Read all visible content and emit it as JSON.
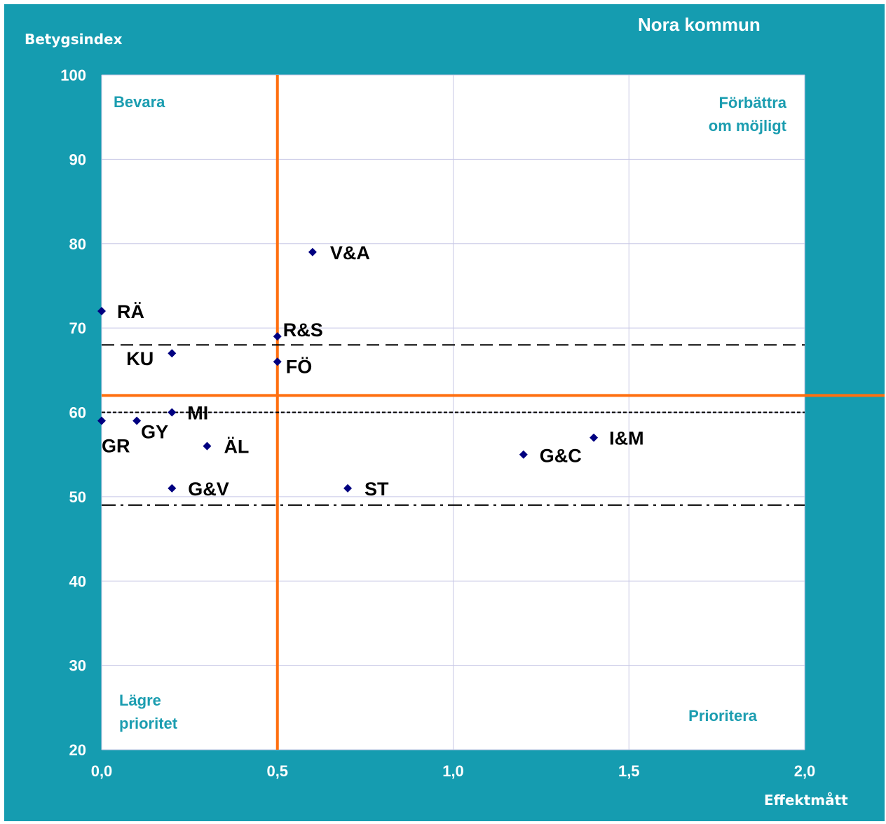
{
  "chart_data": {
    "type": "scatter",
    "title": "Nora kommun",
    "xlabel": "Effektmått",
    "ylabel": "Betygsindex",
    "xlim": [
      0,
      2
    ],
    "ylim": [
      20,
      100
    ],
    "x_ticks": [
      "0,0",
      "0,5",
      "1,0",
      "1,5",
      "2,0"
    ],
    "y_ticks": [
      "20",
      "30",
      "40",
      "50",
      "60",
      "70",
      "80",
      "90",
      "100"
    ],
    "grid": true,
    "marker_color": "#000080",
    "points": [
      {
        "label": "V&A",
        "x": 0.6,
        "y": 79
      },
      {
        "label": "RÄ",
        "x": 0.0,
        "y": 72
      },
      {
        "label": "R&S",
        "x": 0.5,
        "y": 69
      },
      {
        "label": "KU",
        "x": 0.2,
        "y": 67
      },
      {
        "label": "FÖ",
        "x": 0.5,
        "y": 66
      },
      {
        "label": "MI",
        "x": 0.2,
        "y": 60
      },
      {
        "label": "GR",
        "x": 0.0,
        "y": 59
      },
      {
        "label": "GY",
        "x": 0.1,
        "y": 59
      },
      {
        "label": "I&M",
        "x": 1.4,
        "y": 57
      },
      {
        "label": "ÄL",
        "x": 0.3,
        "y": 56
      },
      {
        "label": "G&C",
        "x": 1.2,
        "y": 55
      },
      {
        "label": "G&V",
        "x": 0.2,
        "y": 51
      },
      {
        "label": "ST",
        "x": 0.7,
        "y": 51
      }
    ],
    "reference_lines": [
      {
        "orientation": "vertical",
        "value": 0.5,
        "style": "solid",
        "color": "#FF6F0F"
      },
      {
        "orientation": "horizontal",
        "value": 62,
        "style": "solid",
        "color": "#FF6F0F"
      },
      {
        "orientation": "horizontal",
        "value": 68,
        "style": "dashed",
        "color": "#000000"
      },
      {
        "orientation": "horizontal",
        "value": 60,
        "style": "dotted",
        "color": "#000000"
      },
      {
        "orientation": "horizontal",
        "value": 49,
        "style": "dash-dot",
        "color": "#000000"
      }
    ],
    "quadrant_labels": {
      "top_left": [
        "Bevara"
      ],
      "top_right": [
        "Förbättra",
        "om möjligt"
      ],
      "bottom_left": [
        "Lägre",
        "prioritet"
      ],
      "bottom_right": [
        "Prioritera"
      ]
    }
  },
  "colors": {
    "background": "#159CB0",
    "plot_area": "#FFFFFF",
    "gridlines": "#C8C8E6",
    "quadrant_text": "#1B9DB0",
    "axis_text": "#FFFFFF",
    "point_label": "#000000"
  }
}
